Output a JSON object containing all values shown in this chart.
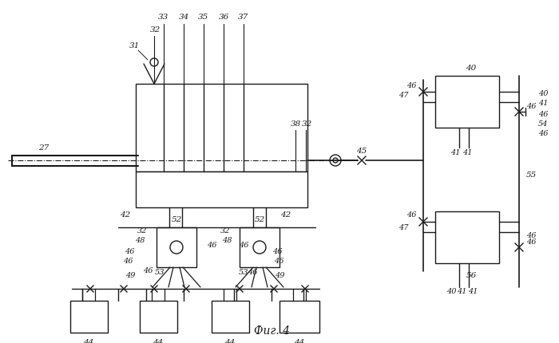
{
  "bg_color": "#ffffff",
  "line_color": "#1a1a1a",
  "fig_width": 7.0,
  "fig_height": 4.3,
  "dpi": 100
}
